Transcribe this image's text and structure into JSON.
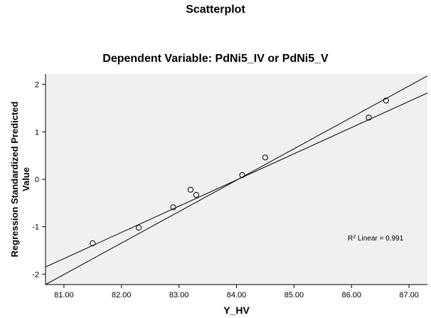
{
  "chart_data": {
    "type": "scatter",
    "title": "Scatterplot",
    "subtitle": "Dependent Variable: PdNi5_IV or PdNi5_V",
    "xlabel": "Y_HV",
    "ylabel": "Regression Standardized Predicted Value",
    "xlim": [
      80.68,
      87.32
    ],
    "ylim": [
      -2.22,
      2.22
    ],
    "x_ticks": [
      81,
      82,
      83,
      84,
      85,
      86,
      87
    ],
    "x_tick_labels": [
      "81.00",
      "82.00",
      "83.00",
      "84.00",
      "85.00",
      "86.00",
      "87.00"
    ],
    "y_ticks": [
      -2,
      -1,
      0,
      1,
      2
    ],
    "y_tick_labels": [
      "-2",
      "-1",
      "0",
      "1",
      "2"
    ],
    "grid": false,
    "series": [
      {
        "marker": "open-circle",
        "points": [
          {
            "x": 81.5,
            "y": -1.35
          },
          {
            "x": 82.3,
            "y": -1.02
          },
          {
            "x": 82.9,
            "y": -0.59
          },
          {
            "x": 83.2,
            "y": -0.22
          },
          {
            "x": 83.3,
            "y": -0.33
          },
          {
            "x": 84.1,
            "y": 0.09
          },
          {
            "x": 84.5,
            "y": 0.46
          },
          {
            "x": 86.3,
            "y": 1.3
          },
          {
            "x": 86.6,
            "y": 1.66
          }
        ]
      }
    ],
    "lines": [
      {
        "from": {
          "x": 80.68,
          "y": -1.85
        },
        "to": {
          "x": 87.32,
          "y": 1.82
        }
      },
      {
        "from": {
          "x": 80.68,
          "y": -2.22
        },
        "to": {
          "x": 87.32,
          "y": 2.18
        }
      }
    ],
    "annotation": {
      "prefix": "R",
      "sup": "2",
      "text": " Linear = 0.991"
    },
    "colors": {
      "plot_bg": "#f0f0f0",
      "axis": "#000000",
      "marker_stroke": "#000000"
    }
  }
}
